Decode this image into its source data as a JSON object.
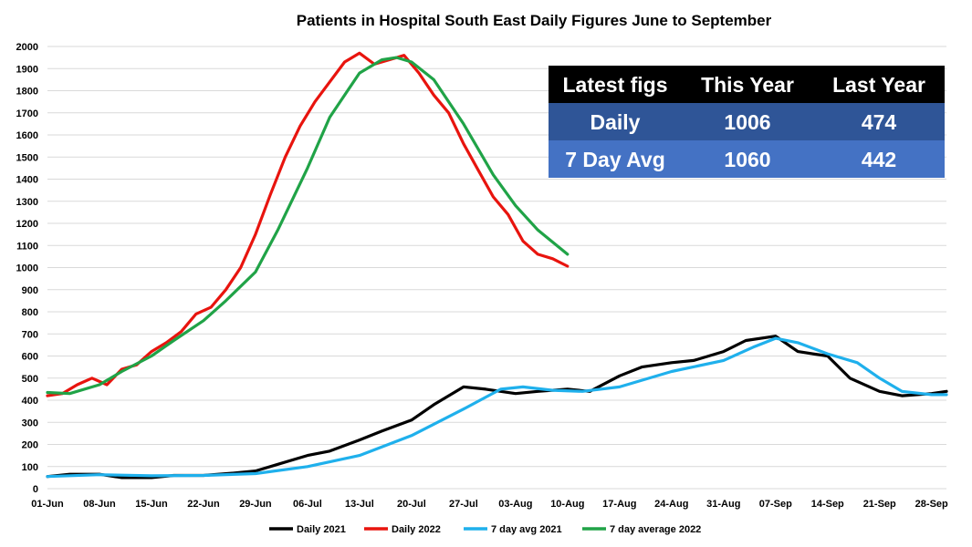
{
  "chart_data": {
    "type": "line",
    "title": "Patients in Hospital  South East Daily Figures June to September",
    "xlabel": "",
    "ylabel": "",
    "ylim": [
      0,
      2000
    ],
    "yticks": [
      0,
      100,
      200,
      300,
      400,
      500,
      600,
      700,
      800,
      900,
      1000,
      1100,
      1200,
      1300,
      1400,
      1500,
      1600,
      1700,
      1800,
      1900,
      2000
    ],
    "x_tick_labels": [
      "01-Jun",
      "08-Jun",
      "15-Jun",
      "22-Jun",
      "29-Jun",
      "06-Jul",
      "13-Jul",
      "20-Jul",
      "27-Jul",
      "03-Aug",
      "10-Aug",
      "17-Aug",
      "24-Aug",
      "31-Aug",
      "07-Sep",
      "14-Sep",
      "21-Sep",
      "28-Sep"
    ],
    "x_start": "01-Jun",
    "x_end": "30-Sep",
    "grid": "horizontal",
    "legend_position": "bottom",
    "series": [
      {
        "name": "Daily 2021",
        "color": "#000000",
        "x": [
          "01-Jun",
          "04-Jun",
          "08-Jun",
          "11-Jun",
          "15-Jun",
          "18-Jun",
          "22-Jun",
          "26-Jun",
          "29-Jun",
          "02-Jul",
          "06-Jul",
          "09-Jul",
          "13-Jul",
          "16-Jul",
          "20-Jul",
          "23-Jul",
          "27-Jul",
          "30-Jul",
          "03-Aug",
          "06-Aug",
          "10-Aug",
          "13-Aug",
          "17-Aug",
          "20-Aug",
          "24-Aug",
          "27-Aug",
          "31-Aug",
          "03-Sep",
          "07-Sep",
          "10-Sep",
          "14-Sep",
          "17-Sep",
          "21-Sep",
          "24-Sep",
          "28-Sep",
          "30-Sep"
        ],
        "y": [
          55,
          65,
          65,
          50,
          50,
          60,
          60,
          70,
          80,
          110,
          150,
          170,
          220,
          260,
          310,
          380,
          460,
          450,
          430,
          440,
          450,
          440,
          510,
          550,
          570,
          580,
          620,
          670,
          690,
          620,
          600,
          500,
          440,
          420,
          430,
          440
        ]
      },
      {
        "name": "Daily 2022",
        "color": "#e8140e",
        "x": [
          "01-Jun",
          "03-Jun",
          "05-Jun",
          "07-Jun",
          "09-Jun",
          "11-Jun",
          "13-Jun",
          "15-Jun",
          "17-Jun",
          "19-Jun",
          "21-Jun",
          "23-Jun",
          "25-Jun",
          "27-Jun",
          "29-Jun",
          "01-Jul",
          "03-Jul",
          "05-Jul",
          "07-Jul",
          "09-Jul",
          "11-Jul",
          "13-Jul",
          "15-Jul",
          "17-Jul",
          "19-Jul",
          "21-Jul",
          "23-Jul",
          "25-Jul",
          "27-Jul",
          "29-Jul",
          "31-Jul",
          "02-Aug",
          "04-Aug",
          "06-Aug",
          "08-Aug",
          "10-Aug"
        ],
        "y": [
          420,
          430,
          470,
          500,
          470,
          540,
          560,
          620,
          660,
          710,
          790,
          820,
          900,
          1000,
          1150,
          1330,
          1500,
          1640,
          1750,
          1840,
          1930,
          1970,
          1920,
          1940,
          1960,
          1880,
          1780,
          1700,
          1560,
          1440,
          1320,
          1240,
          1120,
          1060,
          1040,
          1006
        ]
      },
      {
        "name": "7 day avg 2021",
        "color": "#1fb0ec",
        "x": [
          "01-Jun",
          "08-Jun",
          "15-Jun",
          "22-Jun",
          "29-Jun",
          "06-Jul",
          "13-Jul",
          "20-Jul",
          "27-Jul",
          "01-Aug",
          "04-Aug",
          "08-Aug",
          "12-Aug",
          "17-Aug",
          "24-Aug",
          "31-Aug",
          "04-Sep",
          "07-Sep",
          "10-Sep",
          "14-Sep",
          "18-Sep",
          "21-Sep",
          "24-Sep",
          "28-Sep",
          "30-Sep"
        ],
        "y": [
          55,
          63,
          58,
          60,
          68,
          100,
          150,
          240,
          360,
          450,
          460,
          445,
          440,
          460,
          530,
          580,
          640,
          680,
          660,
          610,
          570,
          500,
          440,
          425,
          425
        ]
      },
      {
        "name": "7 day average 2022",
        "color": "#20a347",
        "x": [
          "01-Jun",
          "04-Jun",
          "08-Jun",
          "11-Jun",
          "15-Jun",
          "18-Jun",
          "22-Jun",
          "25-Jun",
          "29-Jun",
          "02-Jul",
          "06-Jul",
          "09-Jul",
          "13-Jul",
          "16-Jul",
          "18-Jul",
          "20-Jul",
          "23-Jul",
          "27-Jul",
          "31-Jul",
          "03-Aug",
          "06-Aug",
          "10-Aug"
        ],
        "y": [
          435,
          430,
          470,
          530,
          600,
          670,
          760,
          850,
          980,
          1170,
          1450,
          1680,
          1880,
          1940,
          1950,
          1930,
          1850,
          1650,
          1420,
          1280,
          1170,
          1060
        ]
      }
    ]
  },
  "info_table": {
    "header": [
      "Latest figs",
      "This Year",
      "Last Year"
    ],
    "rows": [
      [
        "Daily",
        "1006",
        "474"
      ],
      [
        "7 Day Avg",
        "1060",
        "442"
      ]
    ],
    "header_color": "#000000",
    "row_colors": [
      "#2f5597",
      "#4472c4"
    ]
  }
}
